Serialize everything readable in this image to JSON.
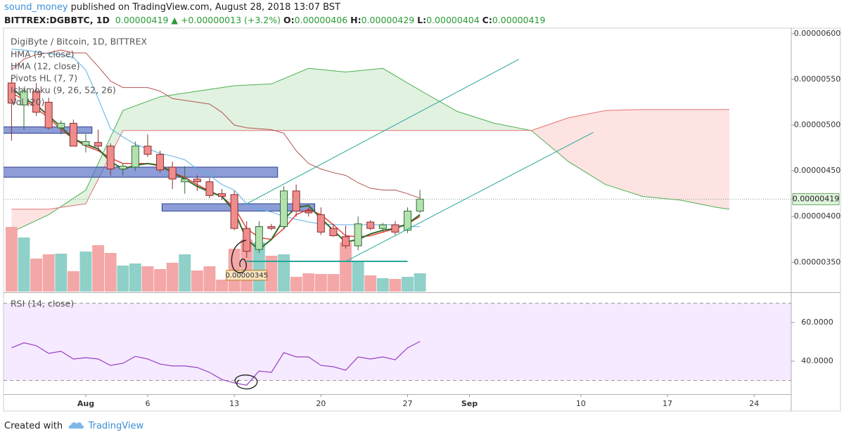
{
  "header": {
    "author": "sound_money",
    "published": " published on TradingView.com, August 28, 2018 13:07 BST",
    "symbol": "BITTREX:DGBBTC, 1D",
    "arrow": "▲",
    "change": "+0.00000013 (+3.2%)",
    "ohlc_labels": [
      "O:",
      "H:",
      "L:",
      "C:"
    ]
  },
  "chart_data": {
    "type": "candlestick",
    "title": "DigiByte / Bitcoin, 1D, BITTREX",
    "xlim": [
      "2018-07-25",
      "2018-09-27"
    ],
    "xticks": [
      {
        "value": "2018-08-01",
        "label": "Aug"
      },
      {
        "value": "2018-08-06",
        "label": "6"
      },
      {
        "value": "2018-08-13",
        "label": "13"
      },
      {
        "value": "2018-08-20",
        "label": "20"
      },
      {
        "value": "2018-08-27",
        "label": "27"
      },
      {
        "value": "2018-09-01",
        "label": "Sep"
      },
      {
        "value": "2018-09-10",
        "label": "10"
      },
      {
        "value": "2018-09-17",
        "label": "17"
      },
      {
        "value": "2018-09-24",
        "label": "24"
      }
    ],
    "ylim": [
      3.18e-06,
      6.06e-06
    ],
    "yticks": [
      {
        "value": 6e-06,
        "label": "0.00000600"
      },
      {
        "value": 5.5e-06,
        "label": "0.00000550"
      },
      {
        "value": 5e-06,
        "label": "0.00000500"
      },
      {
        "value": 4.5e-06,
        "label": "0.00000450"
      },
      {
        "value": 4e-06,
        "label": "0.00000400"
      },
      {
        "value": 3.5e-06,
        "label": "0.00000350"
      }
    ],
    "up_color": "#b3e2b0",
    "up_border": "#356a35",
    "down_color": "#f08c8c",
    "down_border": "#8a2f2f",
    "dates": [
      "2018-07-26",
      "2018-07-27",
      "2018-07-28",
      "2018-07-29",
      "2018-07-30",
      "2018-07-31",
      "2018-08-01",
      "2018-08-02",
      "2018-08-03",
      "2018-08-04",
      "2018-08-05",
      "2018-08-06",
      "2018-08-07",
      "2018-08-08",
      "2018-08-09",
      "2018-08-10",
      "2018-08-11",
      "2018-08-12",
      "2018-08-13",
      "2018-08-14",
      "2018-08-15",
      "2018-08-16",
      "2018-08-17",
      "2018-08-18",
      "2018-08-19",
      "2018-08-20",
      "2018-08-21",
      "2018-08-22",
      "2018-08-23",
      "2018-08-24",
      "2018-08-25",
      "2018-08-26",
      "2018-08-27",
      "2018-08-28"
    ],
    "candles": [
      {
        "o": 5.46e-06,
        "h": 5.52e-06,
        "l": 4.83e-06,
        "c": 5.24e-06
      },
      {
        "o": 5.22e-06,
        "h": 5.41e-06,
        "l": 4.95e-06,
        "c": 5.37e-06
      },
      {
        "o": 5.37e-06,
        "h": 5.46e-06,
        "l": 5.1e-06,
        "c": 5.14e-06
      },
      {
        "o": 5.25e-06,
        "h": 5.3e-06,
        "l": 4.95e-06,
        "c": 4.97e-06
      },
      {
        "o": 4.97e-06,
        "h": 5.05e-06,
        "l": 4.9e-06,
        "c": 5.02e-06
      },
      {
        "o": 5.02e-06,
        "h": 5.06e-06,
        "l": 4.78e-06,
        "c": 4.77e-06
      },
      {
        "o": 4.78e-06,
        "h": 4.9e-06,
        "l": 4.7e-06,
        "c": 4.82e-06
      },
      {
        "o": 4.81e-06,
        "h": 4.95e-06,
        "l": 4.72e-06,
        "c": 4.77e-06
      },
      {
        "o": 4.77e-06,
        "h": 4.8e-06,
        "l": 4.45e-06,
        "c": 4.52e-06
      },
      {
        "o": 4.52e-06,
        "h": 4.58e-06,
        "l": 4.45e-06,
        "c": 4.55e-06
      },
      {
        "o": 4.54e-06,
        "h": 4.82e-06,
        "l": 4.5e-06,
        "c": 4.77e-06
      },
      {
        "o": 4.77e-06,
        "h": 4.9e-06,
        "l": 4.65e-06,
        "c": 4.68e-06
      },
      {
        "o": 4.68e-06,
        "h": 4.72e-06,
        "l": 4.48e-06,
        "c": 4.51e-06
      },
      {
        "o": 4.54e-06,
        "h": 4.6e-06,
        "l": 4.3e-06,
        "c": 4.41e-06
      },
      {
        "o": 4.38e-06,
        "h": 4.55e-06,
        "l": 4.25e-06,
        "c": 4.41e-06
      },
      {
        "o": 4.41e-06,
        "h": 4.45e-06,
        "l": 4.28e-06,
        "c": 4.38e-06
      },
      {
        "o": 4.38e-06,
        "h": 4.42e-06,
        "l": 4.2e-06,
        "c": 4.23e-06
      },
      {
        "o": 4.25e-06,
        "h": 4.3e-06,
        "l": 4.18e-06,
        "c": 4.22e-06
      },
      {
        "o": 4.24e-06,
        "h": 4.28e-06,
        "l": 3.85e-06,
        "c": 3.87e-06
      },
      {
        "o": 3.87e-06,
        "h": 3.95e-06,
        "l": 3.55e-06,
        "c": 3.62e-06
      },
      {
        "o": 3.64e-06,
        "h": 3.95e-06,
        "l": 3.6e-06,
        "c": 3.89e-06
      },
      {
        "o": 3.89e-06,
        "h": 3.92e-06,
        "l": 3.85e-06,
        "c": 3.87e-06
      },
      {
        "o": 3.89e-06,
        "h": 4.33e-06,
        "l": 3.86e-06,
        "c": 4.28e-06
      },
      {
        "o": 4.28e-06,
        "h": 4.35e-06,
        "l": 4e-06,
        "c": 4.06e-06
      },
      {
        "o": 4.06e-06,
        "h": 4.1e-06,
        "l": 4e-06,
        "c": 4.04e-06
      },
      {
        "o": 4.02e-06,
        "h": 4.1e-06,
        "l": 3.8e-06,
        "c": 3.83e-06
      },
      {
        "o": 3.87e-06,
        "h": 3.92e-06,
        "l": 3.78e-06,
        "c": 3.79e-06
      },
      {
        "o": 3.78e-06,
        "h": 3.9e-06,
        "l": 3.65e-06,
        "c": 3.68e-06
      },
      {
        "o": 3.68e-06,
        "h": 4e-06,
        "l": 3.63e-06,
        "c": 3.92e-06
      },
      {
        "o": 3.94e-06,
        "h": 3.96e-06,
        "l": 3.85e-06,
        "c": 3.87e-06
      },
      {
        "o": 3.87e-06,
        "h": 3.93e-06,
        "l": 3.83e-06,
        "c": 3.91e-06
      },
      {
        "o": 3.91e-06,
        "h": 3.95e-06,
        "l": 3.8e-06,
        "c": 3.83e-06
      },
      {
        "o": 3.85e-06,
        "h": 4.1e-06,
        "l": 3.82e-06,
        "c": 4.06e-06
      },
      {
        "o": 4.06e-06,
        "h": 4.29e-06,
        "l": 4.04e-06,
        "c": 4.19e-06
      }
    ],
    "indicators": [
      {
        "label": "HMA (9, close)",
        "color": "#2f6b2a",
        "values": [
          5.41e-06,
          5.29e-06,
          5.22e-06,
          5.1e-06,
          4.98e-06,
          4.85e-06,
          4.79e-06,
          4.74e-06,
          4.6e-06,
          4.52e-06,
          4.56e-06,
          4.58e-06,
          4.56e-06,
          4.48e-06,
          4.41e-06,
          4.33e-06,
          4.27e-06,
          4.22e-06,
          4.06e-06,
          3.75e-06,
          3.64e-06,
          3.75e-06,
          3.97e-06,
          4.1e-06,
          4.12e-06,
          3.98e-06,
          3.85e-06,
          3.72e-06,
          3.75e-06,
          3.81e-06,
          3.85e-06,
          3.87e-06,
          3.92e-06,
          4.02e-06
        ]
      },
      {
        "label": "HMA (12, close)",
        "color": "#e53935",
        "values": [
          5.35e-06,
          5.28e-06,
          5.18e-06,
          5.08e-06,
          4.95e-06,
          4.85e-06,
          4.77e-06,
          4.72e-06,
          4.64e-06,
          4.58e-06,
          4.58e-06,
          4.58e-06,
          4.55e-06,
          4.48e-06,
          4.43e-06,
          4.35e-06,
          4.28e-06,
          4.22e-06,
          4.1e-06,
          3.87e-06,
          3.77e-06,
          3.75e-06,
          3.87e-06,
          4.02e-06,
          4.08e-06,
          4.02e-06,
          3.91e-06,
          3.79e-06,
          3.78e-06,
          3.79e-06,
          3.83e-06,
          3.87e-06,
          3.92e-06,
          4e-06
        ]
      },
      {
        "label": "Pivots HL (7, 7)",
        "color": "#5b73c7",
        "zones": [
          {
            "from": "2018-07-26",
            "to": "2018-08-01",
            "low": 4.91e-06,
            "high": 4.98e-06
          },
          {
            "from": "2018-07-26",
            "to": "2018-08-16",
            "low": 4.43e-06,
            "high": 4.54e-06
          },
          {
            "from": "2018-08-08",
            "to": "2018-08-19",
            "low": 4.06e-06,
            "high": 4.14e-06
          }
        ]
      },
      {
        "label": "Ichimoku (9, 26, 52, 26)",
        "lines": [
          {
            "color": "#5ab0e8",
            "values": [
              5.83e-06,
              5.82e-06,
              5.8e-06,
              5.78e-06,
              5.77e-06,
              5.74e-06,
              5.6e-06,
              5.29e-06,
              4.96e-06,
              4.87e-06,
              4.79e-06,
              4.74e-06,
              4.69e-06,
              4.66e-06,
              4.62e-06,
              4.52e-06,
              4.45e-06,
              4.35e-06,
              4.29e-06,
              4.14e-06,
              4.08e-06,
              4.05e-06,
              4e-06,
              3.97e-06,
              3.94e-06,
              3.92e-06,
              3.91e-06,
              3.91e-06,
              3.91e-06,
              3.91e-06,
              3.91e-06,
              3.91e-06,
              3.89e-06,
              3.89e-06
            ]
          },
          {
            "color": "#b5544f",
            "values": [
              5.6e-06,
              5.72e-06,
              5.77e-06,
              5.79e-06,
              5.82e-06,
              5.79e-06,
              5.79e-06,
              5.64e-06,
              5.48e-06,
              5.41e-06,
              5.41e-06,
              5.41e-06,
              5.37e-06,
              5.29e-06,
              5.27e-06,
              5.25e-06,
              5.23e-06,
              5.14e-06,
              5e-06,
              4.97e-06,
              4.96e-06,
              4.95e-06,
              4.91e-06,
              4.72e-06,
              4.58e-06,
              4.52e-06,
              4.48e-06,
              4.45e-06,
              4.37e-06,
              4.31e-06,
              4.29e-06,
              4.29e-06,
              4.25e-06,
              4.2e-06
            ]
          }
        ],
        "cloud": {
          "up_color": "rgba(76,175,80,0.17)",
          "down_color": "rgba(244,67,54,0.15)",
          "a_color": "#4caf50",
          "b_color": "#e57373",
          "x": [
            "2018-07-26",
            "2018-07-29",
            "2018-08-01",
            "2018-08-04",
            "2018-08-07",
            "2018-08-10",
            "2018-08-13",
            "2018-08-16",
            "2018-08-19",
            "2018-08-22",
            "2018-08-25",
            "2018-08-28",
            "2018-08-31",
            "2018-09-03",
            "2018-09-06",
            "2018-09-09",
            "2018-09-12",
            "2018-09-15",
            "2018-09-18",
            "2018-09-21",
            "2018-09-22"
          ],
          "span_a": [
            3.83e-06,
            4.02e-06,
            4.29e-06,
            5.16e-06,
            5.31e-06,
            5.37e-06,
            5.43e-06,
            5.45e-06,
            5.62e-06,
            5.58e-06,
            5.62e-06,
            5.38e-06,
            5.15e-06,
            5.02e-06,
            4.94e-06,
            4.6e-06,
            4.35e-06,
            4.22e-06,
            4.18e-06,
            4.1e-06,
            4.08e-06
          ],
          "span_b": [
            4.08e-06,
            4.08e-06,
            4.14e-06,
            4.94e-06,
            4.94e-06,
            4.94e-06,
            4.94e-06,
            4.94e-06,
            4.94e-06,
            4.94e-06,
            4.94e-06,
            4.94e-06,
            4.94e-06,
            4.94e-06,
            4.94e-06,
            5.08e-06,
            5.16e-06,
            5.17e-06,
            5.17e-06,
            5.17e-06,
            5.17e-06
          ]
        }
      }
    ],
    "volume": {
      "label": "Vol (20)",
      "up_color": "#8fd0c8",
      "down_color": "#f4a7a7",
      "ylim": [
        0,
        100
      ],
      "values": [
        92,
        77,
        47,
        53,
        54,
        29,
        57,
        66,
        55,
        37,
        40,
        36,
        32,
        41,
        53,
        30,
        36,
        17,
        61,
        74,
        70,
        51,
        53,
        21,
        26,
        25,
        25,
        70,
        43,
        23,
        19,
        18,
        21,
        26
      ]
    },
    "drawings": {
      "color": "#26a69a",
      "lines": [
        {
          "x": [
            "2018-08-14",
            "2018-09-05"
          ],
          "y": [
            4.14e-06,
            5.72e-06
          ]
        },
        {
          "x": [
            "2018-08-22",
            "2018-09-11"
          ],
          "y": [
            3.51e-06,
            4.92e-06
          ]
        },
        {
          "x": [
            "2018-08-14",
            "2018-08-27"
          ],
          "y": [
            3.51e-06,
            3.51e-06
          ]
        }
      ],
      "price_label": {
        "x": "2018-08-14",
        "value": 3.45e-06
      }
    },
    "last_price_color": "#dff3dc",
    "rsi": {
      "label": "RSI (14, close)",
      "color": "#9b3fc4",
      "ylim": [
        23.3,
        74.9
      ],
      "yticks": [
        {
          "value": 60,
          "label": "60.0000"
        },
        {
          "value": 40,
          "label": "40.0000"
        }
      ],
      "bands": [
        70,
        30
      ],
      "values": [
        46.9,
        49.5,
        48.0,
        44.0,
        45.1,
        41.1,
        41.8,
        41.1,
        37.8,
        38.9,
        42.5,
        41.1,
        38.5,
        37.5,
        37.5,
        36.7,
        34.2,
        30.5,
        28.7,
        27.6,
        34.9,
        34.2,
        44.4,
        42.2,
        42.2,
        37.8,
        37.1,
        35.3,
        42.2,
        41.1,
        42.2,
        40.7,
        46.9,
        50.2
      ]
    }
  },
  "footer": {
    "created": "Created with",
    "brand": "TradingView"
  }
}
